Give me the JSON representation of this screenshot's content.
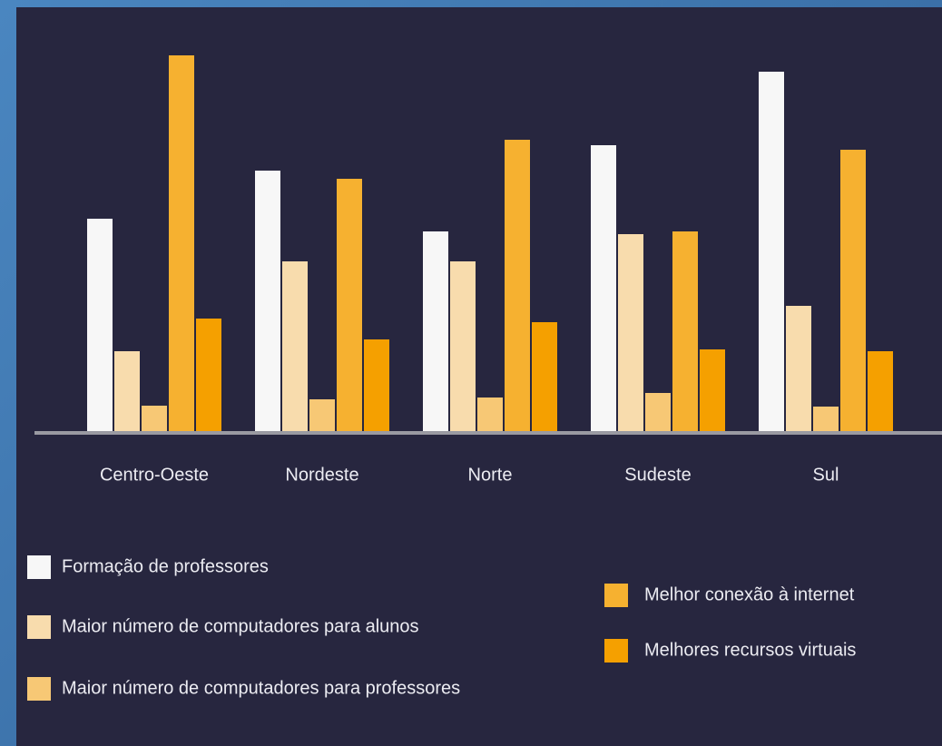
{
  "chart_data": {
    "type": "bar",
    "categories": [
      "Centro-Oeste",
      "Nordeste",
      "Norte",
      "Sudeste",
      "Sul"
    ],
    "series": [
      {
        "name": "Formação de professores",
        "color": "#f7f7f7",
        "values": [
          234,
          287,
          220,
          315,
          396
        ]
      },
      {
        "name": "Maior número de computadores para alunos",
        "color": "#f8dcad",
        "values": [
          88,
          187,
          187,
          217,
          138
        ]
      },
      {
        "name": "Maior número de computadores para professores",
        "color": "#f7c875",
        "values": [
          28,
          35,
          37,
          42,
          27
        ]
      },
      {
        "name": "Melhor conexão à internet",
        "color": "#f6b130",
        "values": [
          414,
          278,
          321,
          220,
          310
        ]
      },
      {
        "name": "Melhores recursos virtuais",
        "color": "#f5a000",
        "values": [
          124,
          101,
          120,
          90,
          88
        ]
      }
    ],
    "ylim": [
      0,
      450
    ]
  }
}
